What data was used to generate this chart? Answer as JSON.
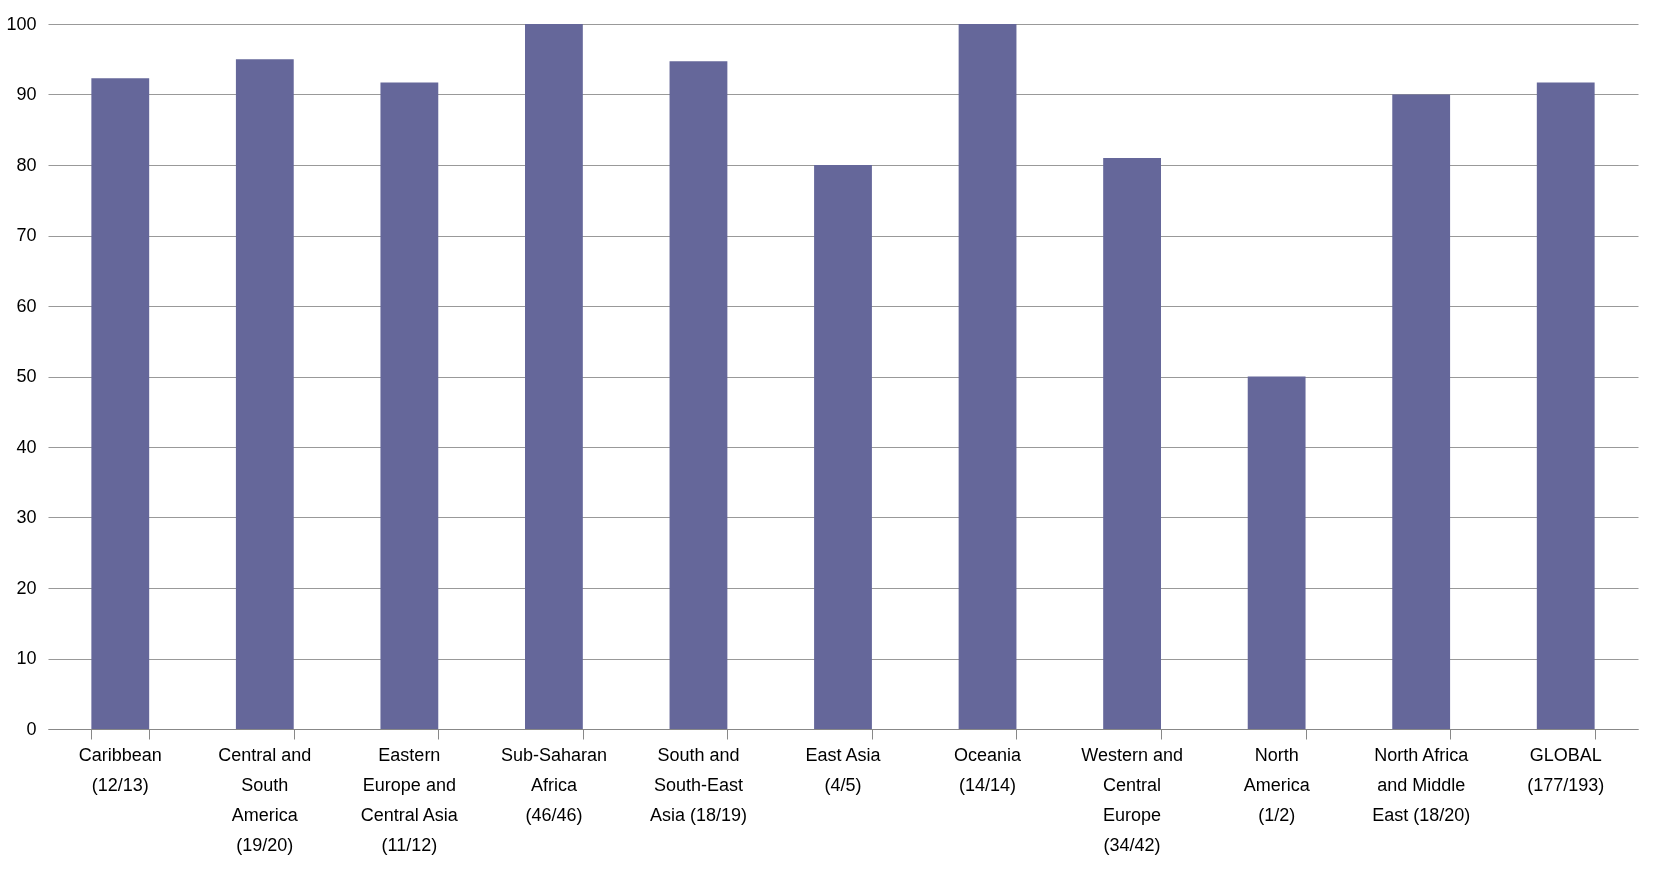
{
  "chart_data": {
    "type": "bar",
    "categories": [
      "Caribbean (12/13)",
      "Central and South America (19/20)",
      "Eastern Europe and Central Asia (11/12)",
      "Sub-Saharan Africa (46/46)",
      "South and South-East Asia (18/19)",
      "East Asia (4/5)",
      "Oceania (14/14)",
      "Western and Central Europe (34/42)",
      "North America (1/2)",
      "North Africa and Middle East (18/20)",
      "GLOBAL (177/193)"
    ],
    "values": [
      92.3,
      95.0,
      91.7,
      100,
      94.7,
      80,
      100,
      81.0,
      50,
      90,
      91.7
    ],
    "color": "#65679a",
    "ylim": [
      0,
      100
    ],
    "yticks": [
      0,
      10,
      20,
      30,
      40,
      50,
      60,
      70,
      80,
      90,
      100
    ],
    "grid": "y"
  }
}
